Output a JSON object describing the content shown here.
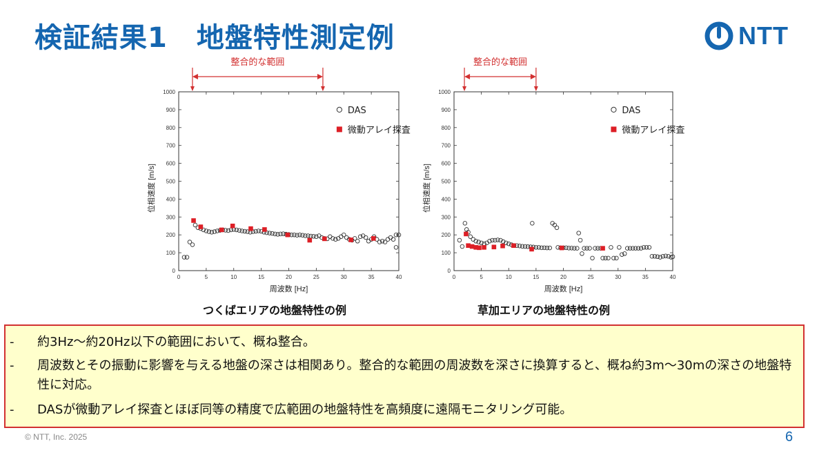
{
  "header": {
    "title_part1": "検証結果1",
    "title_part2": "地盤特性測定例",
    "logo_text": "NTT"
  },
  "colors": {
    "brand": "#1566b0",
    "das_marker": "#333333",
    "array_marker": "#dd1f26",
    "range_arrow": "#d23030",
    "note_bg": "#ffffcc",
    "note_border": "#d23030"
  },
  "chart_data": [
    {
      "type": "scatter",
      "caption": "つくばエリアの地盤特性の例",
      "range_label": "整合的な範囲",
      "range_hz": [
        2.5,
        26.2
      ],
      "xlabel": "周波数 [Hz]",
      "ylabel": "位相速度 [m/s]",
      "xlim": [
        0,
        40
      ],
      "ylim": [
        0,
        1000
      ],
      "xticks": [
        0,
        5,
        10,
        15,
        20,
        25,
        30,
        35,
        40
      ],
      "yticks": [
        0,
        100,
        200,
        300,
        400,
        500,
        600,
        700,
        800,
        900,
        1000
      ],
      "legend": [
        "DAS",
        "微動アレイ探査"
      ],
      "series": [
        {
          "name": "DAS",
          "marker": "open-circle",
          "points": [
            [
              1.0,
              75
            ],
            [
              1.5,
              75
            ],
            [
              2.0,
              160
            ],
            [
              2.5,
              145
            ],
            [
              3.0,
              255
            ],
            [
              3.5,
              240
            ],
            [
              4.0,
              235
            ],
            [
              4.5,
              228
            ],
            [
              5.0,
              222
            ],
            [
              5.5,
              218
            ],
            [
              6.0,
              215
            ],
            [
              6.5,
              218
            ],
            [
              7.0,
              222
            ],
            [
              7.5,
              225
            ],
            [
              8.0,
              228
            ],
            [
              8.5,
              226
            ],
            [
              9.0,
              224
            ],
            [
              9.5,
              228
            ],
            [
              10.0,
              230
            ],
            [
              10.5,
              228
            ],
            [
              11.0,
              225
            ],
            [
              11.5,
              222
            ],
            [
              12.0,
              220
            ],
            [
              12.5,
              218
            ],
            [
              13.0,
              215
            ],
            [
              13.5,
              218
            ],
            [
              14.0,
              220
            ],
            [
              14.5,
              222
            ],
            [
              15.0,
              220
            ],
            [
              15.5,
              215
            ],
            [
              16.0,
              212
            ],
            [
              16.5,
              210
            ],
            [
              17.0,
              208
            ],
            [
              17.5,
              205
            ],
            [
              18.0,
              203
            ],
            [
              18.5,
              205
            ],
            [
              19.0,
              206
            ],
            [
              19.5,
              204
            ],
            [
              20.0,
              202
            ],
            [
              20.5,
              200
            ],
            [
              21.0,
              200
            ],
            [
              21.5,
              198
            ],
            [
              22.0,
              200
            ],
            [
              22.5,
              198
            ],
            [
              23.0,
              195
            ],
            [
              23.5,
              195
            ],
            [
              24.0,
              193
            ],
            [
              24.5,
              192
            ],
            [
              25.0,
              190
            ],
            [
              25.5,
              195
            ],
            [
              26.0,
              185
            ],
            [
              26.5,
              180
            ],
            [
              27.0,
              178
            ],
            [
              27.5,
              190
            ],
            [
              28.0,
              180
            ],
            [
              28.5,
              175
            ],
            [
              29.0,
              180
            ],
            [
              29.5,
              190
            ],
            [
              30.0,
              200
            ],
            [
              30.5,
              185
            ],
            [
              31.0,
              175
            ],
            [
              31.5,
              170
            ],
            [
              32.0,
              180
            ],
            [
              32.5,
              165
            ],
            [
              33.0,
              190
            ],
            [
              33.5,
              195
            ],
            [
              34.0,
              185
            ],
            [
              34.5,
              165
            ],
            [
              35.0,
              175
            ],
            [
              35.5,
              190
            ],
            [
              36.0,
              175
            ],
            [
              36.5,
              160
            ],
            [
              37.0,
              165
            ],
            [
              37.5,
              160
            ],
            [
              38.0,
              175
            ],
            [
              38.5,
              185
            ],
            [
              39.0,
              175
            ],
            [
              39.5,
              130
            ],
            [
              40.0,
              200
            ],
            [
              39.5,
              200
            ]
          ]
        },
        {
          "name": "微動アレイ探査",
          "marker": "filled-square",
          "points": [
            [
              2.7,
              280
            ],
            [
              4.0,
              245
            ],
            [
              7.8,
              228
            ],
            [
              9.8,
              250
            ],
            [
              13.1,
              235
            ],
            [
              15.6,
              230
            ],
            [
              19.8,
              200
            ],
            [
              23.8,
              170
            ],
            [
              26.5,
              178
            ],
            [
              31.3,
              172
            ],
            [
              35.4,
              180
            ]
          ]
        }
      ]
    },
    {
      "type": "scatter",
      "caption": "草加エリアの地盤特性の例",
      "range_label": "整合的な範囲",
      "range_hz": [
        1.9,
        15.0
      ],
      "xlabel": "周波数 [Hz]",
      "ylabel": "位相速度 [m/s]",
      "xlim": [
        0,
        40
      ],
      "ylim": [
        0,
        1000
      ],
      "xticks": [
        0,
        5,
        10,
        15,
        20,
        25,
        30,
        35,
        40
      ],
      "yticks": [
        0,
        100,
        200,
        300,
        400,
        500,
        600,
        700,
        800,
        900,
        1000
      ],
      "legend": [
        "DAS",
        "微動アレイ探査"
      ],
      "series": [
        {
          "name": "DAS",
          "marker": "open-circle",
          "points": [
            [
              1.0,
              170
            ],
            [
              1.5,
              135
            ],
            [
              2.0,
              265
            ],
            [
              2.3,
              230
            ],
            [
              2.6,
              215
            ],
            [
              3.0,
              190
            ],
            [
              3.5,
              175
            ],
            [
              4.0,
              165
            ],
            [
              4.5,
              160
            ],
            [
              5.0,
              155
            ],
            [
              5.5,
              150
            ],
            [
              6.0,
              155
            ],
            [
              6.5,
              165
            ],
            [
              7.0,
              170
            ],
            [
              7.5,
              170
            ],
            [
              8.0,
              172
            ],
            [
              8.5,
              170
            ],
            [
              9.0,
              162
            ],
            [
              9.5,
              155
            ],
            [
              10.0,
              150
            ],
            [
              10.5,
              145
            ],
            [
              11.0,
              140
            ],
            [
              11.5,
              140
            ],
            [
              12.0,
              138
            ],
            [
              12.5,
              136
            ],
            [
              13.0,
              135
            ],
            [
              13.5,
              134
            ],
            [
              14.0,
              133
            ],
            [
              14.3,
              265
            ],
            [
              14.5,
              132
            ],
            [
              15.0,
              130
            ],
            [
              15.5,
              130
            ],
            [
              16.0,
              128
            ],
            [
              16.5,
              128
            ],
            [
              17.0,
              127
            ],
            [
              17.5,
              127
            ],
            [
              18.0,
              265
            ],
            [
              18.4,
              255
            ],
            [
              18.8,
              240
            ],
            [
              19.0,
              130
            ],
            [
              19.5,
              128
            ],
            [
              20.0,
              128
            ],
            [
              20.5,
              128
            ],
            [
              21.0,
              126
            ],
            [
              21.5,
              126
            ],
            [
              22.0,
              125
            ],
            [
              22.5,
              125
            ],
            [
              22.8,
              210
            ],
            [
              23.1,
              170
            ],
            [
              23.4,
              95
            ],
            [
              23.8,
              125
            ],
            [
              24.3,
              125
            ],
            [
              24.8,
              125
            ],
            [
              25.3,
              70
            ],
            [
              25.8,
              125
            ],
            [
              26.3,
              125
            ],
            [
              26.8,
              125
            ],
            [
              27.2,
              70
            ],
            [
              27.7,
              70
            ],
            [
              28.2,
              70
            ],
            [
              28.7,
              130
            ],
            [
              29.2,
              70
            ],
            [
              29.7,
              70
            ],
            [
              30.2,
              130
            ],
            [
              30.7,
              90
            ],
            [
              31.2,
              95
            ],
            [
              31.7,
              125
            ],
            [
              32.2,
              125
            ],
            [
              32.7,
              125
            ],
            [
              33.2,
              125
            ],
            [
              33.7,
              125
            ],
            [
              34.2,
              125
            ],
            [
              34.7,
              130
            ],
            [
              35.2,
              130
            ],
            [
              35.7,
              130
            ],
            [
              36.2,
              80
            ],
            [
              36.7,
              80
            ],
            [
              37.2,
              78
            ],
            [
              37.7,
              75
            ],
            [
              38.2,
              80
            ],
            [
              38.7,
              82
            ],
            [
              39.2,
              80
            ],
            [
              39.7,
              75
            ],
            [
              40.0,
              78
            ]
          ]
        },
        {
          "name": "微動アレイ探査",
          "marker": "filled-square",
          "points": [
            [
              2.2,
              205
            ],
            [
              2.6,
              140
            ],
            [
              3.3,
              135
            ],
            [
              4.0,
              130
            ],
            [
              4.6,
              128
            ],
            [
              5.5,
              130
            ],
            [
              7.3,
              132
            ],
            [
              8.9,
              138
            ],
            [
              10.9,
              140
            ],
            [
              14.2,
              120
            ],
            [
              19.7,
              127
            ],
            [
              27.2,
              125
            ]
          ]
        }
      ]
    }
  ],
  "notes": [
    {
      "dash": "-",
      "text": "約3Hz～約20Hz以下の範囲において、概ね整合。"
    },
    {
      "dash": "-",
      "text": "周波数とその振動に影響を与える地盤の深さは相関あり。整合的な範囲の周波数を深さに換算すると、概ね約3m～30mの深さの地盤特性に対応。"
    },
    {
      "dash": "-",
      "text": "DASが微動アレイ探査とほぼ同等の精度で広範囲の地盤特性を高頻度に遠隔モニタリング可能。"
    }
  ],
  "footer": {
    "copyright": "© NTT, Inc.  2025",
    "page_number": "6"
  }
}
